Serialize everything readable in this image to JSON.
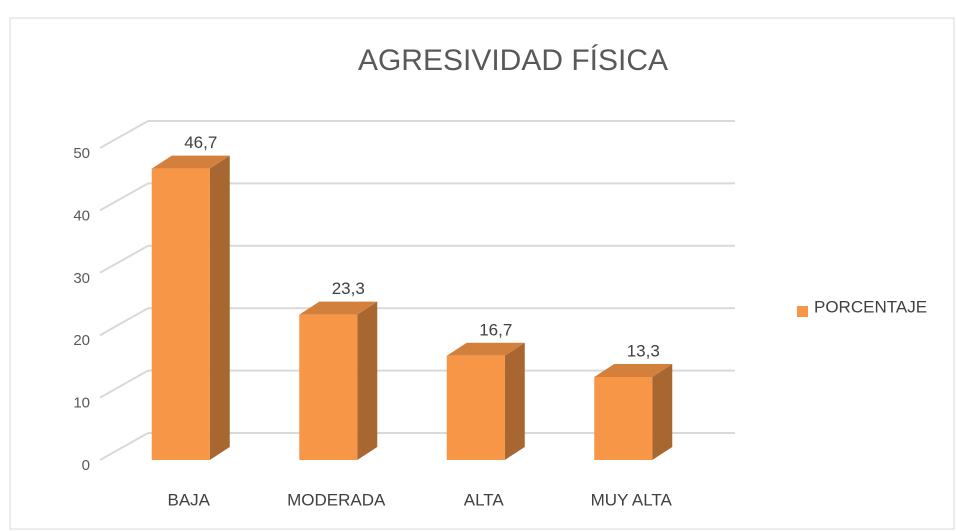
{
  "chart_data": {
    "type": "bar3d",
    "title": "AGRESIVIDAD FÍSICA",
    "categories": [
      "BAJA",
      "MODERADA",
      "ALTA",
      "MUY ALTA"
    ],
    "series": [
      {
        "name": "PORCENTAJE",
        "color": "#f79646",
        "values": [
          46.7,
          23.3,
          16.7,
          13.3
        ],
        "value_labels": [
          "46,7",
          "23,3",
          "16,7",
          "13,3"
        ]
      }
    ],
    "ylim": [
      0,
      50
    ],
    "yticks": [
      0,
      10,
      20,
      30,
      40,
      50
    ],
    "grid": true,
    "legend": "right"
  }
}
